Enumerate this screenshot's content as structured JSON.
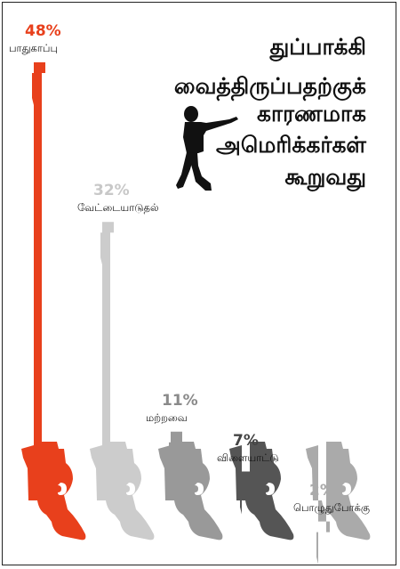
{
  "title_lines": [
    "துப்பாக்கி",
    "வைத்திருப்பதற்குக்",
    "காரணமாக",
    "அமெரிக்கர்கள்",
    "கூறுவது"
  ],
  "silhouette_icon": "pointing-man-silhouette-icon",
  "chart_data": {
    "type": "bar",
    "mark": "revolver-silhouette",
    "title": "துப்பாக்கி வைத்திருப்பதற்குக் காரணமாக அமெரிக்கர்கள் கூறுவது",
    "unit": "%",
    "ylim": [
      0,
      48
    ],
    "categories": [
      "பாதுகாப்பு",
      "வேட்டையாடுதல்",
      "மற்றவை",
      "விளையாட்டு",
      "பொழுதுபோக்கு"
    ],
    "values": [
      48,
      32,
      11,
      7,
      2
    ],
    "labels": [
      "48%",
      "32%",
      "11%",
      "7%",
      "2%"
    ],
    "colors": [
      "#e8401c",
      "#cccccc",
      "#999999",
      "#555555",
      "#aaaaaa"
    ],
    "label_colors": [
      "#e8401c",
      "#c8c8c8",
      "#8a8a8a",
      "#444444",
      "#aaaaaa"
    ]
  }
}
